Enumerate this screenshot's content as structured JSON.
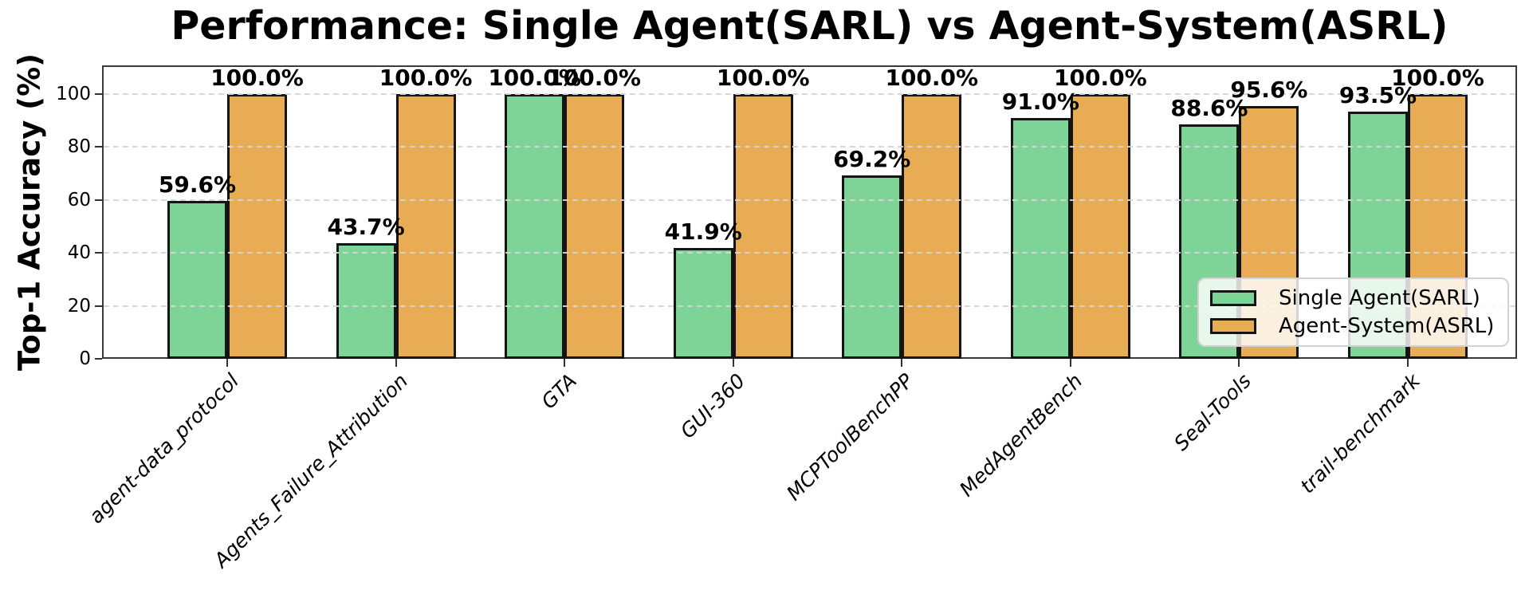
{
  "chart_data": {
    "type": "bar",
    "title": "Performance: Single Agent(SARL) vs Agent-System(ASRL)",
    "xlabel": "",
    "ylabel": "Top-1 Accuracy (%)",
    "categories": [
      "agent-data_protocol",
      "Agents_Failure_Attribution",
      "GTA",
      "GUI-360",
      "MCPToolBenchPP",
      "MedAgentBench",
      "Seal-Tools",
      "trail-benchmark"
    ],
    "series": [
      {
        "name": "Single Agent(SARL)",
        "color": "#7dd496",
        "values": [
          59.6,
          43.7,
          100.0,
          41.9,
          69.2,
          91.0,
          88.6,
          93.5
        ],
        "labels": [
          "59.6%",
          "43.7%",
          "100.0%",
          "41.9%",
          "69.2%",
          "91.0%",
          "88.6%",
          "93.5%"
        ]
      },
      {
        "name": "Agent-System(ASRL)",
        "color": "#e8ac55",
        "values": [
          100.0,
          100.0,
          100.0,
          100.0,
          100.0,
          100.0,
          95.6,
          100.0
        ],
        "labels": [
          "100.0%",
          "100.0%",
          "100.0%",
          "100.0%",
          "100.0%",
          "100.0%",
          "95.6%",
          "100.0%"
        ]
      }
    ],
    "yticks": [
      0,
      20,
      40,
      60,
      80,
      100
    ],
    "ytick_labels": [
      "0",
      "20",
      "40",
      "60",
      "80",
      "100"
    ],
    "ylim": [
      0,
      111
    ],
    "grid": "horizontal-dashed",
    "legend_position": "lower right",
    "bar_edge_color": "#141414",
    "grid_color": "#d6d6d6",
    "spine_color": "#3a3a3a"
  }
}
